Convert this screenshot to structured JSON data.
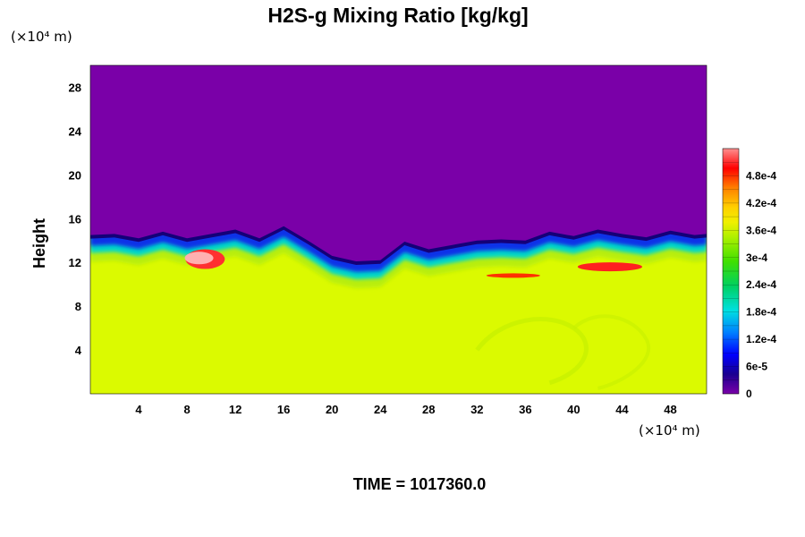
{
  "title": "H2S-g Mixing Ratio [kg/kg]",
  "time_label": "TIME = 1017360.0",
  "y_axis_unit": "(×10⁴ m)",
  "x_axis_unit": "(×10⁴ m)",
  "chart_data": {
    "type": "heatmap",
    "title": "H2S-g Mixing Ratio [kg/kg]",
    "ylabel": "Height",
    "xlabel": "",
    "xlim": [
      0,
      51
    ],
    "ylim": [
      0,
      30
    ],
    "x_ticks": [
      "4",
      "8",
      "12",
      "16",
      "20",
      "24",
      "28",
      "32",
      "36",
      "40",
      "44",
      "48"
    ],
    "y_ticks": [
      "4",
      "8",
      "12",
      "16",
      "20",
      "24",
      "28"
    ],
    "grid": false,
    "colorbar": {
      "range": [
        0,
        0.00054
      ],
      "labels": [
        "0",
        "6e-5",
        "1.2e-4",
        "1.8e-4",
        "2.4e-4",
        "3e-4",
        "3.6e-4",
        "4.2e-4",
        "4.8e-4"
      ]
    },
    "interface_height": [
      [
        0,
        14.5
      ],
      [
        2,
        14.6
      ],
      [
        4,
        14.2
      ],
      [
        6,
        14.8
      ],
      [
        8,
        14.2
      ],
      [
        10,
        14.6
      ],
      [
        12,
        15.0
      ],
      [
        14,
        14.2
      ],
      [
        16,
        15.3
      ],
      [
        18,
        14.0
      ],
      [
        20,
        12.6
      ],
      [
        22,
        12.1
      ],
      [
        24,
        12.2
      ],
      [
        26,
        13.9
      ],
      [
        28,
        13.2
      ],
      [
        30,
        13.6
      ],
      [
        32,
        14.0
      ],
      [
        34,
        14.1
      ],
      [
        36,
        14.0
      ],
      [
        38,
        14.8
      ],
      [
        40,
        14.4
      ],
      [
        42,
        15.0
      ],
      [
        44,
        14.6
      ],
      [
        46,
        14.3
      ],
      [
        48,
        14.9
      ],
      [
        50,
        14.5
      ],
      [
        51,
        14.6
      ]
    ],
    "regions": [
      {
        "area": "above interface",
        "value": "0"
      },
      {
        "area": "below interface",
        "value": "3.6e-4"
      }
    ]
  }
}
